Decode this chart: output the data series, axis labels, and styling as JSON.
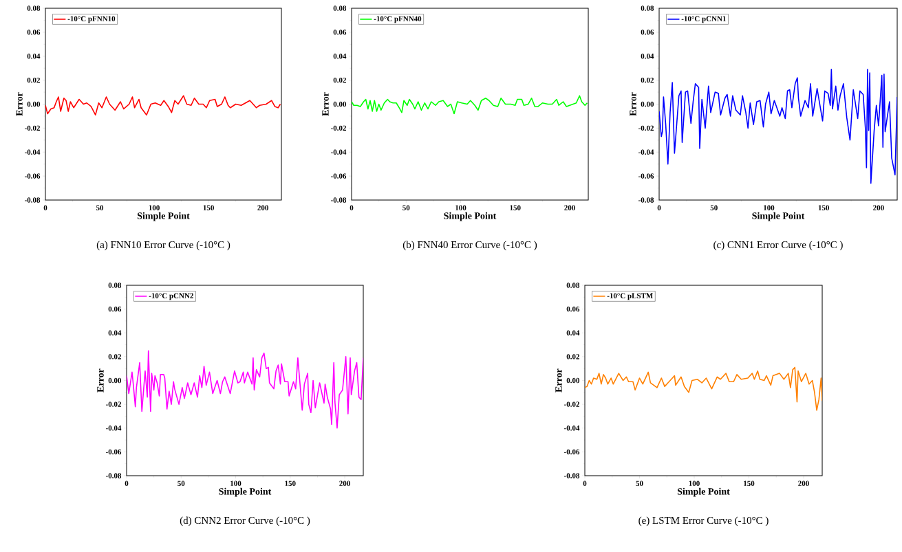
{
  "chart_data": [
    {
      "type": "line",
      "title": "(a) FNN10 Error Curve (-10°C )",
      "xlabel": "Simple Point",
      "ylabel": "Error",
      "legend": "top left",
      "marker": "none",
      "line_style": "solid",
      "xlim": [
        0,
        217
      ],
      "ylim": [
        -0.08,
        0.08
      ],
      "xticks": [
        0,
        50,
        100,
        150,
        200
      ],
      "yticks": [
        {
          "value": -0.08,
          "label": "-0.08"
        },
        {
          "value": -0.06,
          "label": "-0.06"
        },
        {
          "value": -0.04,
          "label": "-0.04"
        },
        {
          "value": -0.02,
          "label": "-0.02"
        },
        {
          "value": 0,
          "label": "0.00"
        },
        {
          "value": 0.02,
          "label": "0.02"
        },
        {
          "value": 0.04,
          "label": "0.04"
        },
        {
          "value": 0.06,
          "label": "0.06"
        },
        {
          "value": 0.08,
          "label": "0.08"
        }
      ],
      "series": [
        {
          "name": "-10°C pFNN10",
          "color": "#ff0000",
          "x": [
            0,
            2,
            5,
            8,
            10,
            12,
            14,
            17,
            19,
            21,
            23,
            26,
            31,
            35,
            38,
            42,
            46,
            49,
            52,
            56,
            59,
            64,
            69,
            72,
            77,
            80,
            82,
            86,
            88,
            93,
            97,
            101,
            106,
            109,
            113,
            116,
            119,
            122,
            127,
            130,
            134,
            137,
            141,
            145,
            148,
            151,
            156,
            158,
            162,
            165,
            168,
            170,
            175,
            180,
            184,
            188,
            194,
            197,
            203,
            208,
            211,
            214,
            216
          ],
          "values": [
            -0.001,
            -0.008,
            -0.004,
            -0.003,
            0.002,
            0.006,
            -0.006,
            0.005,
            0.003,
            -0.006,
            0.002,
            -0.003,
            0.004,
            0.0,
            0.001,
            -0.002,
            -0.009,
            0.001,
            -0.003,
            0.006,
            0.0,
            -0.005,
            0.002,
            -0.004,
            0.0,
            0.006,
            -0.003,
            0.004,
            -0.003,
            -0.009,
            0.0,
            0.001,
            -0.001,
            0.003,
            -0.002,
            -0.007,
            0.003,
            0.0,
            0.007,
            0.0,
            -0.001,
            0.005,
            0.0,
            0.0,
            -0.003,
            0.003,
            0.004,
            -0.002,
            0.0,
            0.006,
            -0.001,
            -0.003,
            0.0,
            -0.001,
            0.001,
            0.003,
            -0.003,
            -0.001,
            0.0,
            0.003,
            -0.002,
            -0.003,
            0.0
          ]
        }
      ]
    },
    {
      "type": "line",
      "title": "(b) FNN40 Error Curve (-10°C )",
      "xlabel": "Simple Point",
      "ylabel": "Error",
      "legend": "top left",
      "marker": "none",
      "line_style": "solid",
      "xlim": [
        0,
        217
      ],
      "ylim": [
        -0.08,
        0.08
      ],
      "xticks": [
        0,
        50,
        100,
        150,
        200
      ],
      "yticks": [
        {
          "value": -0.08,
          "label": "-0.08"
        },
        {
          "value": -0.06,
          "label": "-0.06"
        },
        {
          "value": -0.04,
          "label": "-0.04"
        },
        {
          "value": -0.02,
          "label": "-0.02"
        },
        {
          "value": 0,
          "label": "0.00"
        },
        {
          "value": 0.02,
          "label": "0.02"
        },
        {
          "value": 0.04,
          "label": "0.04"
        },
        {
          "value": 0.06,
          "label": "0.06"
        },
        {
          "value": 0.08,
          "label": "0.08"
        }
      ],
      "series": [
        {
          "name": "-10°C pFNN40",
          "color": "#00ff00",
          "x": [
            0,
            2,
            5,
            8,
            11,
            13,
            15,
            17,
            19,
            21,
            23,
            25,
            27,
            30,
            33,
            35,
            38,
            41,
            43,
            46,
            48,
            51,
            53,
            56,
            58,
            61,
            64,
            67,
            70,
            73,
            77,
            80,
            84,
            88,
            91,
            94,
            97,
            101,
            106,
            109,
            113,
            116,
            119,
            123,
            126,
            130,
            134,
            137,
            141,
            146,
            150,
            152,
            156,
            158,
            162,
            165,
            168,
            171,
            175,
            180,
            184,
            188,
            190,
            194,
            197,
            203,
            206,
            209,
            211,
            214,
            216
          ],
          "values": [
            0.002,
            -0.001,
            -0.001,
            -0.002,
            0.002,
            0.004,
            -0.004,
            0.003,
            -0.006,
            0.003,
            -0.006,
            0.0,
            -0.005,
            0.001,
            0.004,
            0.002,
            0.001,
            0.001,
            -0.002,
            -0.007,
            0.003,
            -0.001,
            0.004,
            0.0,
            -0.004,
            0.002,
            -0.005,
            0.001,
            -0.004,
            0.002,
            -0.001,
            0.002,
            0.003,
            -0.002,
            0.0,
            -0.008,
            0.002,
            0.001,
            0.0,
            0.003,
            -0.001,
            -0.005,
            0.003,
            0.005,
            0.003,
            -0.001,
            -0.002,
            0.005,
            0.0,
            0.0,
            -0.001,
            0.004,
            0.004,
            -0.001,
            0.0,
            0.005,
            -0.002,
            -0.002,
            0.001,
            0.0,
            0.0,
            0.004,
            -0.001,
            0.002,
            -0.002,
            0.0,
            0.001,
            0.007,
            0.002,
            -0.001,
            0.001
          ]
        }
      ]
    },
    {
      "type": "line",
      "title": "(c) CNN1 Error Curve (-10°C )",
      "xlabel": "Simple Point",
      "ylabel": "Error",
      "legend": "top left",
      "marker": "none",
      "line_style": "solid",
      "xlim": [
        0,
        217
      ],
      "ylim": [
        -0.08,
        0.08
      ],
      "xticks": [
        0,
        50,
        100,
        150,
        200
      ],
      "yticks": [
        {
          "value": -0.08,
          "label": "-0.08"
        },
        {
          "value": -0.06,
          "label": "-0.06"
        },
        {
          "value": -0.04,
          "label": "-0.04"
        },
        {
          "value": -0.02,
          "label": "-0.02"
        },
        {
          "value": 0,
          "label": "0.00"
        },
        {
          "value": 0.02,
          "label": "0.02"
        },
        {
          "value": 0.04,
          "label": "0.04"
        },
        {
          "value": 0.06,
          "label": "0.06"
        },
        {
          "value": 0.08,
          "label": "0.08"
        }
      ],
      "series": [
        {
          "name": "-10°C pCNN1",
          "color": "#0000ff",
          "x": [
            0,
            2,
            3,
            4,
            6,
            8,
            10,
            12,
            14,
            18,
            20,
            21,
            24,
            26,
            29,
            31,
            33,
            36,
            37,
            39,
            42,
            45,
            47,
            51,
            54,
            56,
            60,
            62,
            65,
            67,
            70,
            74,
            76,
            79,
            81,
            83,
            86,
            89,
            92,
            95,
            97,
            100,
            102,
            105,
            110,
            112,
            115,
            117,
            119,
            121,
            124,
            126,
            127,
            129,
            133,
            136,
            138,
            140,
            144,
            149,
            151,
            154,
            156,
            157,
            158,
            161,
            163,
            165,
            168,
            171,
            174,
            177,
            181,
            183,
            186,
            188,
            189,
            190,
            191,
            192,
            193,
            196,
            198,
            200,
            203,
            204,
            205,
            206,
            210,
            212,
            215,
            217
          ],
          "values": [
            -0.006,
            -0.027,
            -0.023,
            0.006,
            -0.017,
            -0.05,
            -0.007,
            0.018,
            -0.041,
            0.007,
            0.011,
            -0.032,
            0.01,
            0.011,
            -0.016,
            0.002,
            0.017,
            0.014,
            -0.037,
            0.004,
            -0.02,
            0.015,
            -0.007,
            0.01,
            0.009,
            -0.009,
            0.005,
            0.008,
            -0.01,
            0.007,
            -0.005,
            -0.009,
            0.007,
            -0.007,
            -0.02,
            0.001,
            -0.017,
            0.002,
            0.003,
            -0.019,
            0.0,
            0.01,
            -0.008,
            0.003,
            -0.01,
            -0.003,
            -0.012,
            0.011,
            0.012,
            -0.003,
            0.017,
            0.022,
            0.005,
            -0.01,
            0.003,
            -0.003,
            0.017,
            -0.01,
            0.013,
            -0.014,
            0.011,
            0.009,
            -0.001,
            0.029,
            -0.004,
            0.015,
            -0.005,
            0.007,
            0.017,
            -0.011,
            -0.03,
            0.012,
            -0.012,
            0.011,
            0.008,
            -0.02,
            -0.053,
            0.029,
            -0.022,
            0.026,
            -0.066,
            -0.022,
            -0.001,
            -0.018,
            0.024,
            -0.036,
            0.025,
            -0.023,
            0.002,
            -0.045,
            -0.059,
            0.006
          ]
        }
      ]
    },
    {
      "type": "line",
      "title": "(d) CNN2 Error Curve (-10°C )",
      "xlabel": "Simple Point",
      "ylabel": "Error",
      "legend": "top left",
      "marker": "none",
      "line_style": "solid",
      "xlim": [
        0,
        217
      ],
      "ylim": [
        -0.08,
        0.08
      ],
      "xticks": [
        0,
        50,
        100,
        150,
        200
      ],
      "yticks": [
        {
          "value": -0.08,
          "label": "-0.08"
        },
        {
          "value": -0.06,
          "label": "-0.06"
        },
        {
          "value": -0.04,
          "label": "-0.04"
        },
        {
          "value": -0.02,
          "label": "-0.02"
        },
        {
          "value": 0,
          "label": "0.00"
        },
        {
          "value": 0.02,
          "label": "0.02"
        },
        {
          "value": 0.04,
          "label": "0.04"
        },
        {
          "value": 0.06,
          "label": "0.06"
        },
        {
          "value": 0.08,
          "label": "0.08"
        }
      ],
      "series": [
        {
          "name": "-10°C pCNN2",
          "color": "#ff00ff",
          "x": [
            0,
            2,
            5,
            6,
            8,
            9,
            12,
            14,
            17,
            19,
            20,
            22,
            23,
            25,
            26,
            28,
            30,
            31,
            34,
            35,
            37,
            39,
            41,
            43,
            44,
            48,
            51,
            53,
            56,
            59,
            62,
            65,
            67,
            69,
            71,
            73,
            76,
            79,
            83,
            86,
            88,
            90,
            95,
            99,
            102,
            104,
            107,
            108,
            111,
            115,
            116,
            117,
            119,
            122,
            124,
            126,
            128,
            130,
            131,
            135,
            137,
            139,
            141,
            142,
            145,
            148,
            149,
            153,
            155,
            157,
            161,
            163,
            166,
            167,
            169,
            171,
            173,
            177,
            181,
            182,
            184,
            187,
            188,
            190,
            191,
            193,
            195,
            198,
            201,
            203,
            205,
            206,
            209,
            211,
            213,
            215,
            217
          ],
          "values": [
            0.004,
            -0.011,
            0.007,
            -0.002,
            -0.022,
            -0.006,
            0.015,
            -0.026,
            0.008,
            -0.014,
            0.025,
            -0.026,
            0.006,
            -0.008,
            0.004,
            -0.002,
            -0.013,
            0.005,
            0.005,
            0.002,
            -0.024,
            -0.009,
            -0.02,
            -0.001,
            -0.007,
            -0.02,
            -0.006,
            -0.015,
            -0.002,
            -0.012,
            -0.002,
            -0.014,
            0.004,
            -0.006,
            0.012,
            -0.004,
            0.007,
            -0.011,
            0.0,
            -0.011,
            -0.001,
            0.003,
            -0.011,
            0.008,
            -0.002,
            -0.001,
            0.007,
            -0.002,
            0.007,
            -0.003,
            0.019,
            -0.008,
            0.009,
            0.003,
            0.019,
            0.023,
            0.01,
            0.011,
            -0.002,
            -0.007,
            0.008,
            0.013,
            -0.003,
            0.014,
            -0.001,
            -0.001,
            -0.013,
            -0.001,
            -0.007,
            0.019,
            -0.025,
            -0.003,
            0.006,
            -0.02,
            -0.027,
            0.0,
            -0.023,
            -0.002,
            -0.019,
            -0.003,
            -0.014,
            -0.024,
            -0.037,
            0.015,
            -0.018,
            -0.04,
            -0.012,
            -0.008,
            0.02,
            -0.028,
            0.019,
            -0.012,
            0.008,
            0.015,
            -0.014,
            -0.016,
            0.019
          ]
        }
      ]
    },
    {
      "type": "line",
      "title": "(e) LSTM Error Curve (-10°C )",
      "xlabel": "Simple Point",
      "ylabel": "Error",
      "legend": "top left",
      "marker": "none",
      "line_style": "solid",
      "xlim": [
        0,
        217
      ],
      "ylim": [
        -0.08,
        0.08
      ],
      "xticks": [
        0,
        50,
        100,
        150,
        200
      ],
      "yticks": [
        {
          "value": -0.08,
          "label": "-0.08"
        },
        {
          "value": -0.06,
          "label": "-0.06"
        },
        {
          "value": -0.04,
          "label": "-0.04"
        },
        {
          "value": -0.02,
          "label": "-0.02"
        },
        {
          "value": 0,
          "label": "0.00"
        },
        {
          "value": 0.02,
          "label": "0.02"
        },
        {
          "value": 0.04,
          "label": "0.04"
        },
        {
          "value": 0.06,
          "label": "0.06"
        },
        {
          "value": 0.08,
          "label": "0.08"
        }
      ],
      "series": [
        {
          "name": "-10°C pLSTM",
          "color": "#ff8000",
          "x": [
            0,
            2,
            4,
            6,
            8,
            11,
            13,
            15,
            17,
            19,
            21,
            24,
            26,
            31,
            35,
            38,
            40,
            44,
            46,
            50,
            53,
            58,
            60,
            66,
            70,
            73,
            77,
            82,
            83,
            88,
            91,
            95,
            98,
            103,
            107,
            111,
            116,
            121,
            124,
            129,
            132,
            136,
            139,
            143,
            149,
            153,
            155,
            158,
            160,
            164,
            166,
            170,
            172,
            178,
            182,
            186,
            188,
            190,
            192,
            194,
            195,
            198,
            202,
            205,
            208,
            210,
            212,
            214,
            216,
            217
          ],
          "values": [
            -0.006,
            -0.005,
            0.0,
            -0.003,
            0.002,
            0.001,
            0.006,
            -0.003,
            0.005,
            0.002,
            -0.003,
            0.002,
            -0.003,
            0.006,
            0.0,
            0.003,
            -0.001,
            -0.001,
            -0.008,
            0.002,
            -0.003,
            0.007,
            -0.002,
            -0.006,
            0.002,
            -0.005,
            -0.001,
            0.004,
            -0.004,
            0.003,
            -0.005,
            -0.01,
            0.0,
            0.001,
            -0.002,
            0.002,
            -0.007,
            0.003,
            0.001,
            0.006,
            -0.001,
            -0.001,
            0.005,
            0.001,
            0.002,
            0.006,
            0.001,
            0.008,
            0.001,
            0.0,
            0.004,
            -0.004,
            0.004,
            0.006,
            0.001,
            0.006,
            -0.006,
            0.009,
            0.011,
            -0.018,
            0.008,
            -0.001,
            0.006,
            -0.003,
            0.0,
            -0.01,
            -0.025,
            -0.016,
            0.002,
            -0.017
          ]
        }
      ]
    }
  ]
}
